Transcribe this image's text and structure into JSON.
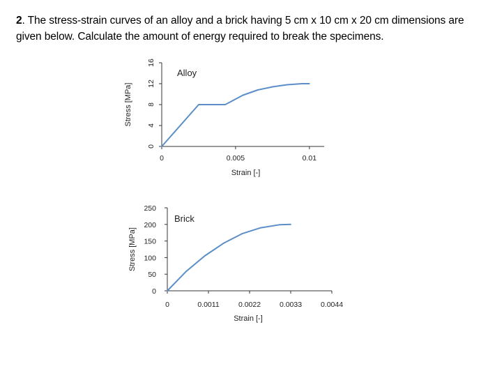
{
  "question": {
    "number": "2",
    "text": ". The stress-strain curves of an alloy and a brick having 5 cm x 10 cm x 20 cm dimensions are given below. Calculate the amount of energy required to break the specimens."
  },
  "chart_data": [
    {
      "type": "line",
      "title": "Alloy",
      "xlabel": "Strain [-]",
      "ylabel": "Stress [MPa]",
      "xlim": [
        0,
        0.011
      ],
      "ylim": [
        0,
        16
      ],
      "xticks": [
        0,
        0.005,
        0.01
      ],
      "xtick_labels": [
        "0",
        "0.005",
        "0.01"
      ],
      "yticks": [
        0,
        4,
        8,
        12,
        16
      ],
      "ytick_labels": [
        "0",
        "4",
        "8",
        "12",
        "16"
      ],
      "ytick_rotated": true,
      "grid": false,
      "legend": "none",
      "color": "#5b8ec8",
      "series": [
        {
          "x": [
            0,
            0.0025,
            0.0043,
            0.0055,
            0.0065,
            0.0075,
            0.0085,
            0.0095,
            0.01
          ],
          "y": [
            0,
            8,
            8,
            9.8,
            10.8,
            11.4,
            11.8,
            12,
            12
          ]
        }
      ]
    },
    {
      "type": "line",
      "title": "Brick",
      "xlabel": "Strain [-]",
      "ylabel": "Stress [MPa]",
      "xlim": [
        0,
        0.0044
      ],
      "ylim": [
        0,
        250
      ],
      "xticks": [
        0,
        0.0011,
        0.0022,
        0.0033,
        0.0044
      ],
      "xtick_labels": [
        "0",
        "0.0011",
        "0.0022",
        "0.0033",
        "0.0044"
      ],
      "yticks": [
        0,
        50,
        100,
        150,
        200,
        250
      ],
      "ytick_labels": [
        "0",
        "50",
        "100",
        "150",
        "200",
        "250"
      ],
      "ytick_rotated": false,
      "grid": false,
      "legend": "none",
      "color": "#5b8ec8",
      "series": [
        {
          "x": [
            0,
            0.0005,
            0.001,
            0.0015,
            0.002,
            0.0025,
            0.003,
            0.0033
          ],
          "y": [
            0,
            58,
            105,
            143,
            172,
            190,
            199,
            200
          ]
        }
      ]
    }
  ]
}
